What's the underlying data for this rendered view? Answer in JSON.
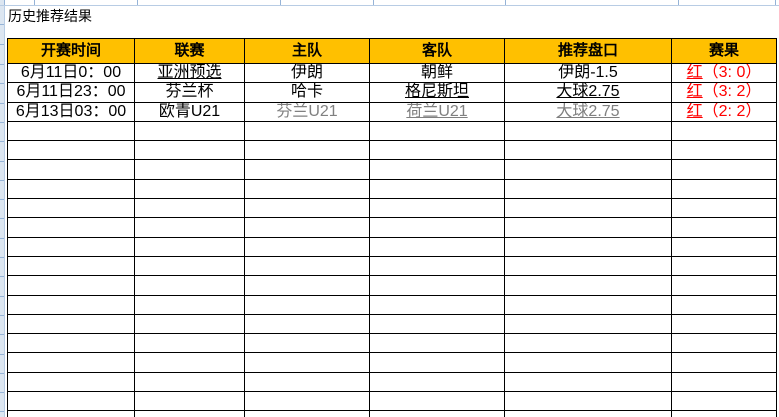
{
  "page": {
    "title": "历史推荐结果"
  },
  "table": {
    "headers": [
      "开赛时间",
      "联赛",
      "主队",
      "客队",
      "推荐盘口",
      "赛果"
    ],
    "rows": [
      {
        "cells": [
          {
            "t": "6月11日0：00"
          },
          {
            "t": "亚洲预选",
            "u": true
          },
          {
            "t": "伊朗"
          },
          {
            "t": "朝鲜"
          },
          {
            "t": "伊朗-1.5"
          }
        ],
        "result": {
          "label": "红",
          "score": "（3: 0）"
        }
      },
      {
        "cells": [
          {
            "t": "6月11日23：00"
          },
          {
            "t": "芬兰杯"
          },
          {
            "t": "哈卡"
          },
          {
            "t": "格尼斯坦",
            "u": true
          },
          {
            "t": "大球2.75",
            "u": true
          }
        ],
        "result": {
          "label": "红",
          "score": "（3: 2）"
        }
      },
      {
        "cells": [
          {
            "t": "6月13日03：00"
          },
          {
            "t": "欧青U21"
          },
          {
            "t": "芬兰U21",
            "muted": true
          },
          {
            "t": "荷兰U21",
            "u": true,
            "muted": true
          },
          {
            "t": "大球2.75",
            "u": true,
            "muted": true
          }
        ],
        "result": {
          "label": "红",
          "score": "（2: 2）"
        }
      }
    ],
    "empty_rows": 16
  },
  "colors": {
    "header_bg": "#FFC000",
    "result_red": "#FF0000",
    "muted_text": "#808080",
    "grid_blue": "#95B3D7",
    "border_black": "#000000"
  }
}
